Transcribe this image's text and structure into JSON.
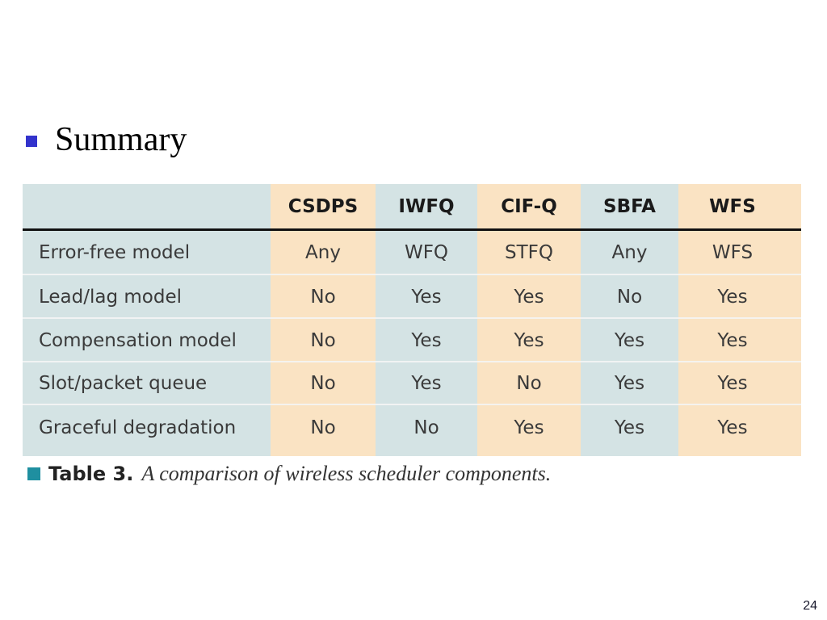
{
  "slide": {
    "heading": "Summary",
    "page_number": "24"
  },
  "table": {
    "columns": [
      "CSDPS",
      "IWFQ",
      "CIF-Q",
      "SBFA",
      "WFS"
    ],
    "rows": [
      {
        "label": "Error-free model",
        "cells": [
          "Any",
          "WFQ",
          "STFQ",
          "Any",
          "WFS"
        ]
      },
      {
        "label": "Lead/lag model",
        "cells": [
          "No",
          "Yes",
          "Yes",
          "No",
          "Yes"
        ]
      },
      {
        "label": "Compensation model",
        "cells": [
          "No",
          "Yes",
          "Yes",
          "Yes",
          "Yes"
        ]
      },
      {
        "label": "Slot/packet queue",
        "cells": [
          "No",
          "Yes",
          "No",
          "Yes",
          "Yes"
        ]
      },
      {
        "label": "Graceful degradation",
        "cells": [
          "No",
          "No",
          "Yes",
          "Yes",
          "Yes"
        ]
      }
    ],
    "colors": {
      "blue_band": "#d4e3e4",
      "tan_band": "#fae3c3"
    }
  },
  "caption": {
    "label": "Table 3.",
    "text": "A comparison of wireless scheduler components."
  },
  "colors": {
    "bullet": "#3333cc",
    "caption_square": "#1f8fa0"
  }
}
